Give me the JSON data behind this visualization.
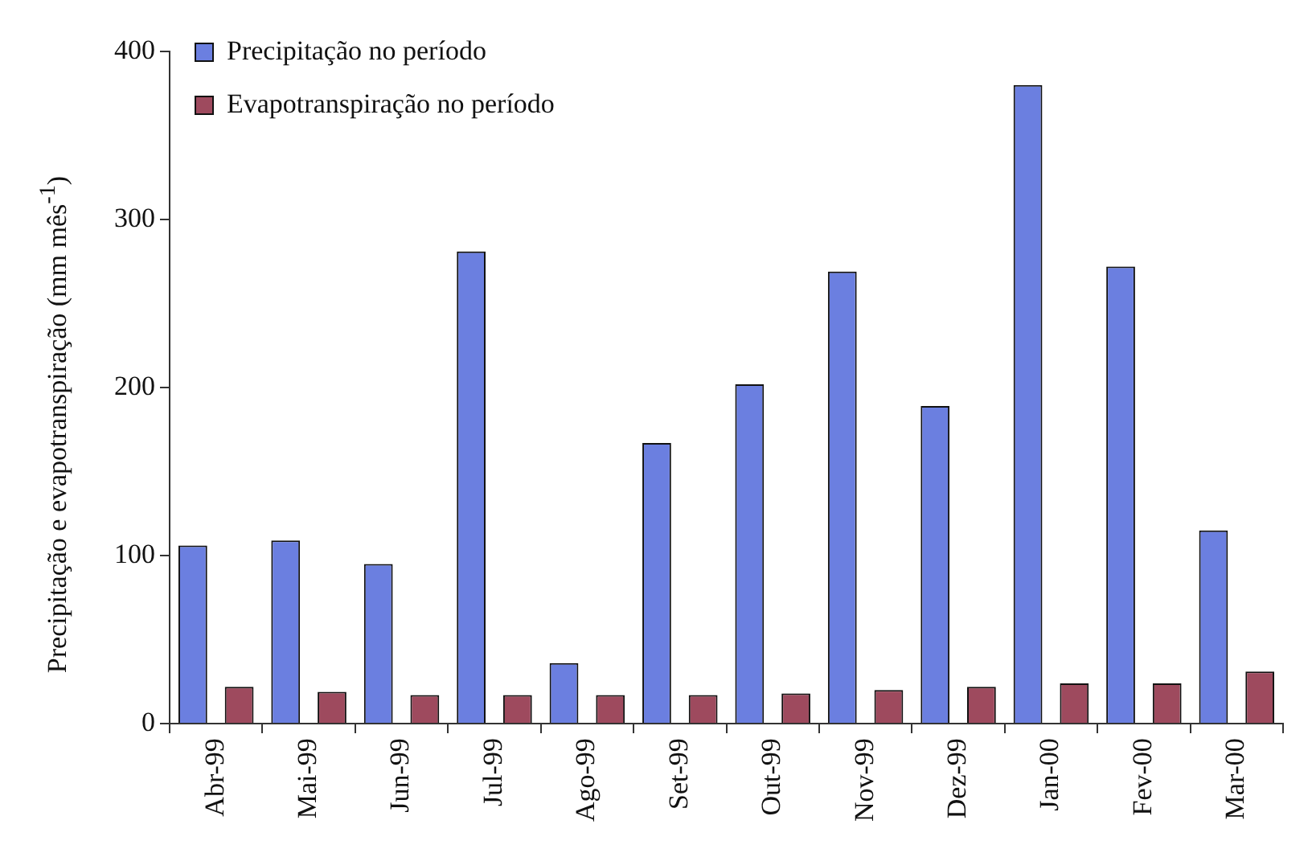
{
  "chart_data": {
    "type": "bar",
    "ylabel": "Precipitação e evapotranspiração (mm mês$^{-1}$)",
    "categories": [
      "Abr-99",
      "Mai-99",
      "Jun-99",
      "Jul-99",
      "Ago-99",
      "Set-99",
      "Out-99",
      "Nov-99",
      "Dez-99",
      "Jan-00",
      "Fev-00",
      "Mar-00"
    ],
    "series": [
      {
        "name": "Precipitação no período",
        "color": "#6b7fe0",
        "values": [
          106,
          109,
          95,
          281,
          36,
          167,
          202,
          269,
          189,
          380,
          272,
          115
        ]
      },
      {
        "name": "Evapotranspiração no período",
        "color": "#9e4a5e",
        "values": [
          22,
          19,
          17,
          17,
          17,
          17,
          18,
          20,
          22,
          24,
          24,
          31
        ]
      }
    ],
    "ylim": [
      0,
      400
    ],
    "yticks": [
      0,
      100,
      200,
      300,
      400
    ],
    "grid": false,
    "legend": "top left"
  }
}
